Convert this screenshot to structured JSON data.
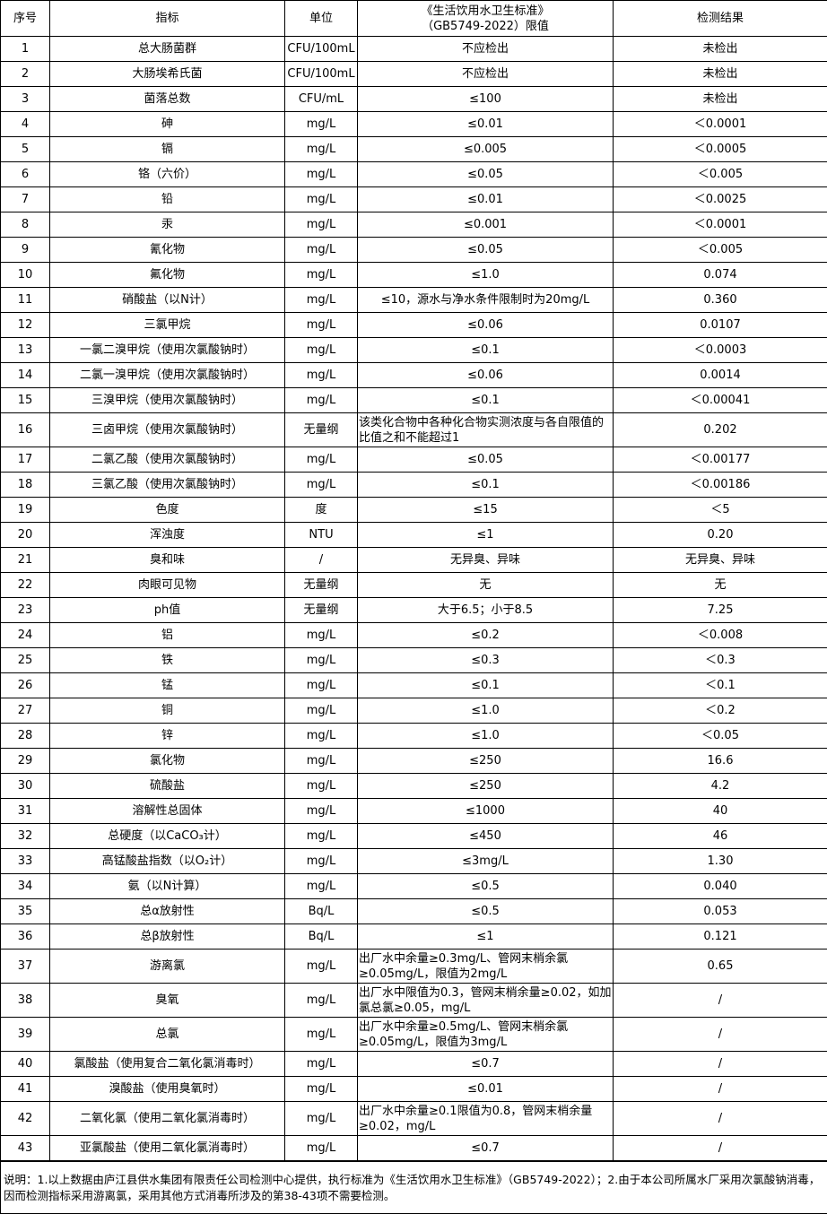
{
  "headers": [
    "序号",
    "指标",
    "单位",
    "《生活饮用水卫生标准》\n（GB5749-2022）限值",
    "检测结果"
  ],
  "rows": [
    [
      "1",
      "总大肠菌群",
      "CFU/100mL",
      "不应检出",
      "未检出"
    ],
    [
      "2",
      "大肠埃希氏菌",
      "CFU/100mL",
      "不应检出",
      "未检出"
    ],
    [
      "3",
      "菌落总数",
      "CFU/mL",
      "≤100",
      "未检出"
    ],
    [
      "4",
      "砷",
      "mg/L",
      "≤0.01",
      "＜0.0001"
    ],
    [
      "5",
      "镉",
      "mg/L",
      "≤0.005",
      "＜0.0005"
    ],
    [
      "6",
      "铬（六价）",
      "mg/L",
      "≤0.05",
      "＜0.005"
    ],
    [
      "7",
      "铅",
      "mg/L",
      "≤0.01",
      "＜0.0025"
    ],
    [
      "8",
      "汞",
      "mg/L",
      "≤0.001",
      "＜0.0001"
    ],
    [
      "9",
      "氰化物",
      "mg/L",
      "≤0.05",
      "＜0.005"
    ],
    [
      "10",
      "氟化物",
      "mg/L",
      "≤1.0",
      "0.074"
    ],
    [
      "11",
      "硝酸盐（以N计）",
      "mg/L",
      "≤10，源水与净水条件限制时为20mg/L",
      "0.360"
    ],
    [
      "12",
      "三氯甲烷",
      "mg/L",
      "≤0.06",
      "0.0107"
    ],
    [
      "13",
      "一氯二溴甲烷（使用次氯酸钠时）",
      "mg/L",
      "≤0.1",
      "＜0.0003"
    ],
    [
      "14",
      "二氯一溴甲烷（使用次氯酸钠时）",
      "mg/L",
      "≤0.06",
      "0.0014"
    ],
    [
      "15",
      "三溴甲烷（使用次氯酸钠时）",
      "mg/L",
      "≤0.1",
      "＜0.00041"
    ],
    [
      "16",
      "三卤甲烷（使用次氯酸钠时）",
      "无量纲",
      "该类化合物中各种化合物实测浓度与各自限值的比值之和不能超过1",
      "0.202"
    ],
    [
      "17",
      "二氯乙酸（使用次氯酸钠时）",
      "mg/L",
      "≤0.05",
      "＜0.00177"
    ],
    [
      "18",
      "三氯乙酸（使用次氯酸钠时）",
      "mg/L",
      "≤0.1",
      "＜0.00186"
    ],
    [
      "19",
      "色度",
      "度",
      "≤15",
      "＜5"
    ],
    [
      "20",
      "浑浊度",
      "NTU",
      "≤1",
      "0.20"
    ],
    [
      "21",
      "臭和味",
      "/",
      "无异臭、异味",
      "无异臭、异味"
    ],
    [
      "22",
      "肉眼可见物",
      "无量纲",
      "无",
      "无"
    ],
    [
      "23",
      "ph值",
      "无量纲",
      "大于6.5；小于8.5",
      "7.25"
    ],
    [
      "24",
      "铝",
      "mg/L",
      "≤0.2",
      "＜0.008"
    ],
    [
      "25",
      "铁",
      "mg/L",
      "≤0.3",
      "＜0.3"
    ],
    [
      "26",
      "锰",
      "mg/L",
      "≤0.1",
      "＜0.1"
    ],
    [
      "27",
      "铜",
      "mg/L",
      "≤1.0",
      "＜0.2"
    ],
    [
      "28",
      "锌",
      "mg/L",
      "≤1.0",
      "＜0.05"
    ],
    [
      "29",
      "氯化物",
      "mg/L",
      "≤250",
      "16.6"
    ],
    [
      "30",
      "硫酸盐",
      "mg/L",
      "≤250",
      "4.2"
    ],
    [
      "31",
      "溶解性总固体",
      "mg/L",
      "≤1000",
      "40"
    ],
    [
      "32",
      "总硬度（以CaCO₃计）",
      "mg/L",
      "≤450",
      "46"
    ],
    [
      "33",
      "高锰酸盐指数（以O₂计）",
      "mg/L",
      "≤3mg/L",
      "1.30"
    ],
    [
      "34",
      "氨（以N计算）",
      "mg/L",
      "≤0.5",
      "0.040"
    ],
    [
      "35",
      "总α放射性",
      "Bq/L",
      "≤0.5",
      "0.053"
    ],
    [
      "36",
      "总β放射性",
      "Bq/L",
      "≤1",
      "0.121"
    ],
    [
      "37",
      "游离氯",
      "mg/L",
      "出厂水中余量≥0.3mg/L、管网末梢余氯≥0.05mg/L，限值为2mg/L",
      "0.65"
    ],
    [
      "38",
      "臭氧",
      "mg/L",
      "出厂水中限值为0.3，管网末梢余量≥0.02，如加氯总氯≥0.05，mg/L",
      "/"
    ],
    [
      "39",
      "总氯",
      "mg/L",
      "出厂水中余量≥0.5mg/L、管网末梢余氯≥0.05mg/L，限值为3mg/L",
      "/"
    ],
    [
      "40",
      "氯酸盐（使用复合二氧化氯消毒时）",
      "mg/L",
      "≤0.7",
      "/"
    ],
    [
      "41",
      "溴酸盐（使用臭氧时）",
      "mg/L",
      "≤0.01",
      "/"
    ],
    [
      "42",
      "二氧化氯（使用二氧化氯消毒时）",
      "mg/L",
      "出厂水中余量≥0.1限值为0.8，管网末梢余量≥0.02，mg/L",
      "/"
    ],
    [
      "43",
      "亚氯酸盐（使用二氧化氯消毒时）",
      "mg/L",
      "≤0.7",
      "/"
    ]
  ],
  "note": "说明：1.以上数据由庐江县供水集团有限责任公司检测中心提供，执行标准为《生活饮用水卫生标准》（GB5749-2022）；2.由于本公司所属水厂采用次氯酸钠消毒，因而检测指标采用游离氯，采用其他方式消毒所涉及的第38-43项不需要检测。"
}
